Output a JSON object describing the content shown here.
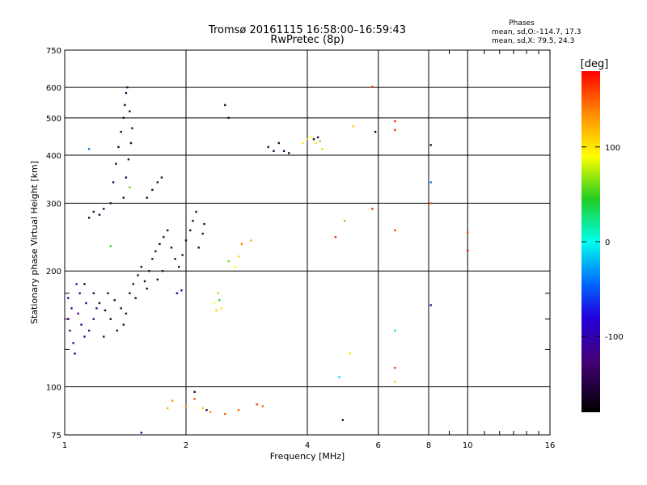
{
  "chart_data": {
    "type": "scatter",
    "title": "Tromsø 20161115 16:58:00–16:59:43",
    "subtitle": "RwPretec (8p)",
    "xlabel": "Frequency [MHz]",
    "ylabel": "Stationary phase Virtual Height [km]",
    "x_scale": "log",
    "y_scale": "log",
    "xlim": [
      1,
      16
    ],
    "ylim": [
      75,
      750
    ],
    "x_ticks": [
      1,
      2,
      4,
      6,
      8,
      10,
      16
    ],
    "y_ticks": [
      75,
      100,
      200,
      300,
      400,
      500,
      600,
      750
    ],
    "grid": true,
    "stats": {
      "header": "Phases",
      "line1": "mean, sd,O:–114.7, 17.3",
      "line2": "mean, sd,X:  79.5, 24.3"
    },
    "colorbar": {
      "label": "[deg]",
      "range": [
        -180,
        180
      ],
      "ticks": [
        100,
        0,
        -100
      ]
    },
    "points": [
      {
        "x": 1.02,
        "y": 170,
        "phase": -110
      },
      {
        "x": 1.04,
        "y": 160,
        "phase": -115
      },
      {
        "x": 1.03,
        "y": 140,
        "phase": -120
      },
      {
        "x": 1.05,
        "y": 130,
        "phase": -118
      },
      {
        "x": 1.06,
        "y": 122,
        "phase": -112
      },
      {
        "x": 1.02,
        "y": 150,
        "phase": -121
      },
      {
        "x": 1.08,
        "y": 155,
        "phase": -116
      },
      {
        "x": 1.1,
        "y": 145,
        "phase": -119
      },
      {
        "x": 1.12,
        "y": 135,
        "phase": -114
      },
      {
        "x": 1.15,
        "y": 140,
        "phase": -117
      },
      {
        "x": 1.09,
        "y": 175,
        "phase": -111
      },
      {
        "x": 1.13,
        "y": 165,
        "phase": -113
      },
      {
        "x": 1.07,
        "y": 185,
        "phase": -122
      },
      {
        "x": 1.18,
        "y": 150,
        "phase": -119
      },
      {
        "x": 1.2,
        "y": 160,
        "phase": -110
      },
      {
        "x": 1.12,
        "y": 185,
        "phase": -150
      },
      {
        "x": 1.18,
        "y": 175,
        "phase": -150
      },
      {
        "x": 1.22,
        "y": 165,
        "phase": -150
      },
      {
        "x": 1.26,
        "y": 158,
        "phase": -150
      },
      {
        "x": 1.3,
        "y": 150,
        "phase": -150
      },
      {
        "x": 1.28,
        "y": 175,
        "phase": -150
      },
      {
        "x": 1.33,
        "y": 168,
        "phase": -150
      },
      {
        "x": 1.38,
        "y": 160,
        "phase": -150
      },
      {
        "x": 1.42,
        "y": 155,
        "phase": -150
      },
      {
        "x": 1.45,
        "y": 175,
        "phase": -150
      },
      {
        "x": 1.48,
        "y": 185,
        "phase": -150
      },
      {
        "x": 1.52,
        "y": 195,
        "phase": -150
      },
      {
        "x": 1.55,
        "y": 205,
        "phase": -150
      },
      {
        "x": 1.58,
        "y": 188,
        "phase": -150
      },
      {
        "x": 1.62,
        "y": 200,
        "phase": -150
      },
      {
        "x": 1.65,
        "y": 215,
        "phase": -150
      },
      {
        "x": 1.68,
        "y": 225,
        "phase": -150
      },
      {
        "x": 1.72,
        "y": 235,
        "phase": -150
      },
      {
        "x": 1.76,
        "y": 245,
        "phase": -150
      },
      {
        "x": 1.8,
        "y": 255,
        "phase": -150
      },
      {
        "x": 1.84,
        "y": 230,
        "phase": -150
      },
      {
        "x": 1.88,
        "y": 215,
        "phase": -150
      },
      {
        "x": 1.92,
        "y": 205,
        "phase": -150
      },
      {
        "x": 1.96,
        "y": 220,
        "phase": -150
      },
      {
        "x": 2.0,
        "y": 240,
        "phase": -150
      },
      {
        "x": 2.05,
        "y": 255,
        "phase": -150
      },
      {
        "x": 2.08,
        "y": 270,
        "phase": -150
      },
      {
        "x": 2.12,
        "y": 285,
        "phase": -150
      },
      {
        "x": 1.75,
        "y": 200,
        "phase": -150
      },
      {
        "x": 1.7,
        "y": 190,
        "phase": -150
      },
      {
        "x": 1.6,
        "y": 180,
        "phase": -150
      },
      {
        "x": 1.5,
        "y": 170,
        "phase": -150
      },
      {
        "x": 1.4,
        "y": 145,
        "phase": -150
      },
      {
        "x": 1.35,
        "y": 140,
        "phase": -150
      },
      {
        "x": 1.25,
        "y": 135,
        "phase": -150
      },
      {
        "x": 1.15,
        "y": 275,
        "phase": -150
      },
      {
        "x": 1.18,
        "y": 285,
        "phase": -150
      },
      {
        "x": 1.22,
        "y": 280,
        "phase": -150
      },
      {
        "x": 1.25,
        "y": 290,
        "phase": -150
      },
      {
        "x": 1.3,
        "y": 300,
        "phase": -150
      },
      {
        "x": 1.32,
        "y": 340,
        "phase": -150
      },
      {
        "x": 1.34,
        "y": 380,
        "phase": -150
      },
      {
        "x": 1.36,
        "y": 420,
        "phase": -150
      },
      {
        "x": 1.38,
        "y": 460,
        "phase": -150
      },
      {
        "x": 1.4,
        "y": 500,
        "phase": -150
      },
      {
        "x": 1.41,
        "y": 540,
        "phase": -150
      },
      {
        "x": 1.42,
        "y": 580,
        "phase": -150
      },
      {
        "x": 1.43,
        "y": 600,
        "phase": -150
      },
      {
        "x": 1.45,
        "y": 520,
        "phase": -150
      },
      {
        "x": 1.47,
        "y": 470,
        "phase": -150
      },
      {
        "x": 1.46,
        "y": 430,
        "phase": -150
      },
      {
        "x": 1.44,
        "y": 390,
        "phase": -150
      },
      {
        "x": 1.42,
        "y": 350,
        "phase": -150
      },
      {
        "x": 1.4,
        "y": 310,
        "phase": -150
      },
      {
        "x": 1.6,
        "y": 310,
        "phase": -150
      },
      {
        "x": 1.65,
        "y": 325,
        "phase": -150
      },
      {
        "x": 1.7,
        "y": 340,
        "phase": -150
      },
      {
        "x": 1.74,
        "y": 350,
        "phase": -150
      },
      {
        "x": 2.15,
        "y": 230,
        "phase": -150
      },
      {
        "x": 2.2,
        "y": 250,
        "phase": -150
      },
      {
        "x": 2.22,
        "y": 265,
        "phase": -150
      },
      {
        "x": 1.9,
        "y": 175,
        "phase": -110
      },
      {
        "x": 1.95,
        "y": 178,
        "phase": -110
      },
      {
        "x": 1.3,
        "y": 232,
        "phase": 40
      },
      {
        "x": 1.45,
        "y": 330,
        "phase": 60
      },
      {
        "x": 1.15,
        "y": 415,
        "phase": -40
      },
      {
        "x": 2.35,
        "y": 165,
        "phase": 90
      },
      {
        "x": 2.4,
        "y": 175,
        "phase": 70
      },
      {
        "x": 2.38,
        "y": 158,
        "phase": 110
      },
      {
        "x": 2.42,
        "y": 168,
        "phase": 50
      },
      {
        "x": 2.45,
        "y": 160,
        "phase": 100
      },
      {
        "x": 2.55,
        "y": 212,
        "phase": 60
      },
      {
        "x": 2.65,
        "y": 205,
        "phase": 90
      },
      {
        "x": 2.7,
        "y": 218,
        "phase": 105
      },
      {
        "x": 2.75,
        "y": 235,
        "phase": 140
      },
      {
        "x": 2.9,
        "y": 240,
        "phase": 120
      },
      {
        "x": 2.5,
        "y": 540,
        "phase": -150
      },
      {
        "x": 2.55,
        "y": 500,
        "phase": -150
      },
      {
        "x": 3.2,
        "y": 420,
        "phase": -150
      },
      {
        "x": 3.3,
        "y": 410,
        "phase": -150
      },
      {
        "x": 3.4,
        "y": 430,
        "phase": -150
      },
      {
        "x": 3.5,
        "y": 410,
        "phase": -150
      },
      {
        "x": 3.6,
        "y": 405,
        "phase": -150
      },
      {
        "x": 3.9,
        "y": 430,
        "phase": 100
      },
      {
        "x": 4.0,
        "y": 440,
        "phase": 110
      },
      {
        "x": 4.1,
        "y": 445,
        "phase": 90
      },
      {
        "x": 4.2,
        "y": 430,
        "phase": 100
      },
      {
        "x": 4.3,
        "y": 435,
        "phase": 60
      },
      {
        "x": 4.35,
        "y": 415,
        "phase": 80
      },
      {
        "x": 4.15,
        "y": 440,
        "phase": -150
      },
      {
        "x": 4.25,
        "y": 445,
        "phase": -150
      },
      {
        "x": 1.8,
        "y": 88,
        "phase": 120
      },
      {
        "x": 1.85,
        "y": 92,
        "phase": 130
      },
      {
        "x": 2.0,
        "y": 89,
        "phase": 130
      },
      {
        "x": 2.1,
        "y": 93,
        "phase": 150
      },
      {
        "x": 2.2,
        "y": 88,
        "phase": 110
      },
      {
        "x": 2.3,
        "y": 86,
        "phase": 130
      },
      {
        "x": 2.5,
        "y": 85,
        "phase": 150
      },
      {
        "x": 2.7,
        "y": 87,
        "phase": 150
      },
      {
        "x": 3.0,
        "y": 90,
        "phase": 160
      },
      {
        "x": 3.1,
        "y": 89,
        "phase": 150
      },
      {
        "x": 2.1,
        "y": 97,
        "phase": -150
      },
      {
        "x": 2.25,
        "y": 87,
        "phase": -150
      },
      {
        "x": 1.55,
        "y": 76,
        "phase": -110
      },
      {
        "x": 4.9,
        "y": 82,
        "phase": -150
      },
      {
        "x": 4.8,
        "y": 106,
        "phase": -10
      },
      {
        "x": 5.1,
        "y": 122,
        "phase": 100
      },
      {
        "x": 4.95,
        "y": 270,
        "phase": 60
      },
      {
        "x": 4.7,
        "y": 245,
        "phase": 170
      },
      {
        "x": 5.2,
        "y": 475,
        "phase": 110
      },
      {
        "x": 5.9,
        "y": 460,
        "phase": -150
      },
      {
        "x": 5.8,
        "y": 602,
        "phase": 170
      },
      {
        "x": 5.8,
        "y": 290,
        "phase": 170
      },
      {
        "x": 6.6,
        "y": 490,
        "phase": 170
      },
      {
        "x": 6.6,
        "y": 465,
        "phase": 170
      },
      {
        "x": 6.6,
        "y": 255,
        "phase": 160
      },
      {
        "x": 6.6,
        "y": 140,
        "phase": 20
      },
      {
        "x": 6.6,
        "y": 112,
        "phase": 160
      },
      {
        "x": 6.6,
        "y": 103,
        "phase": 110
      },
      {
        "x": 8.1,
        "y": 425,
        "phase": -150
      },
      {
        "x": 8.1,
        "y": 340,
        "phase": -40
      },
      {
        "x": 8.1,
        "y": 300,
        "phase": 150
      },
      {
        "x": 8.1,
        "y": 163,
        "phase": -110
      },
      {
        "x": 10.0,
        "y": 252,
        "phase": 160
      },
      {
        "x": 10.0,
        "y": 226,
        "phase": 180
      }
    ]
  }
}
